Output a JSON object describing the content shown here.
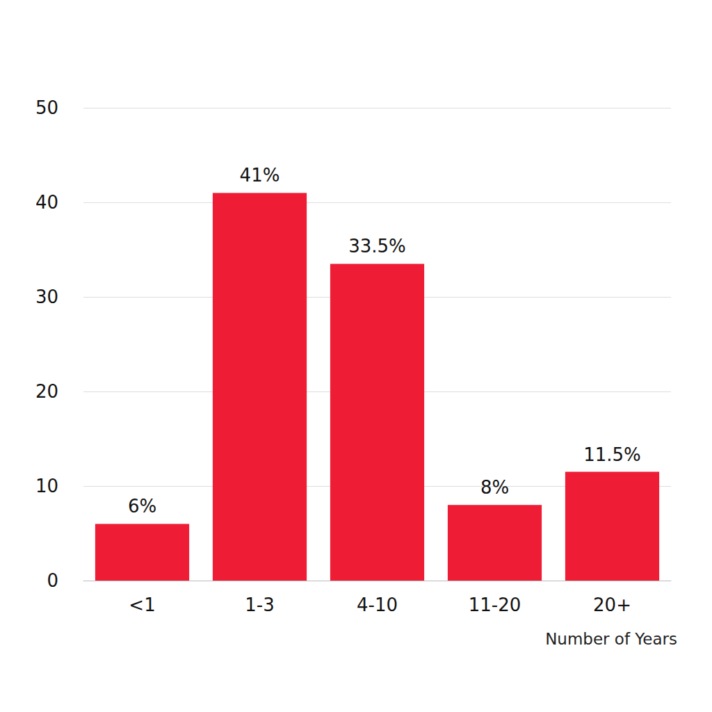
{
  "chart_data": {
    "type": "bar",
    "x_label": "Number of Years",
    "categories": [
      "<1",
      "1-3",
      "4-10",
      "11-20",
      "20+"
    ],
    "values": [
      6,
      41,
      33.5,
      8,
      11.5
    ],
    "value_labels": [
      "6%",
      "41%",
      "33.5%",
      "8%",
      "11.5%"
    ],
    "color": "#ee1c34",
    "ylim": [
      0,
      50
    ],
    "yticks": [
      0,
      10,
      20,
      30,
      40,
      50
    ],
    "grid": true,
    "data_labels": true
  }
}
